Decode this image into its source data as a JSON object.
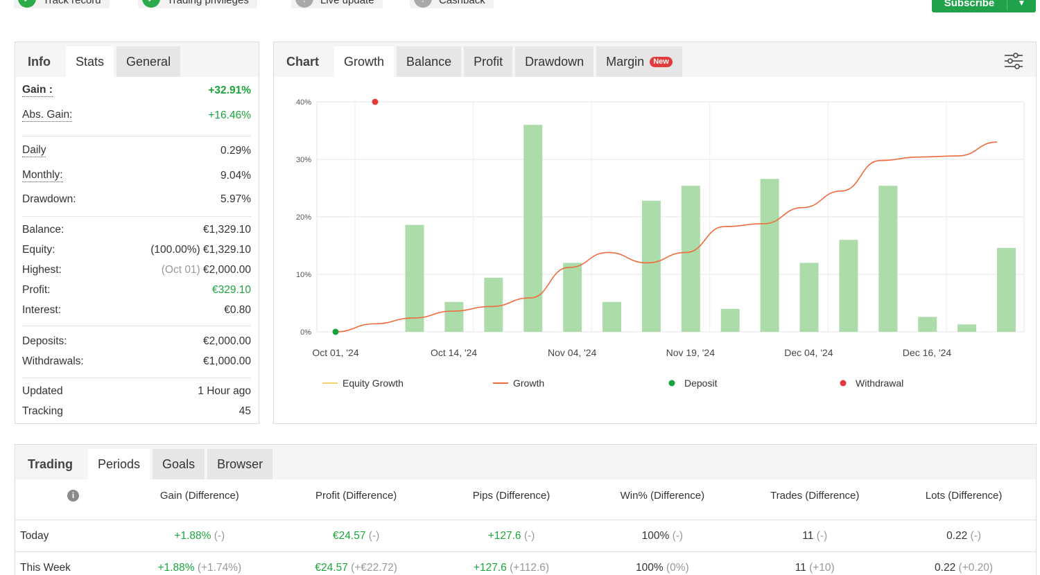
{
  "status_bar": {
    "items": [
      {
        "label": "Track record",
        "state": "verified"
      },
      {
        "label": "Trading privileges",
        "state": "verified"
      },
      {
        "label": "Live update",
        "state": "unavailable"
      },
      {
        "label": "Cashback",
        "state": "unavailable"
      }
    ],
    "subscribe_label": "Subscribe"
  },
  "info": {
    "tabs": [
      "Info",
      "Stats",
      "General"
    ],
    "active_tab": "Stats",
    "rows": {
      "gain": {
        "label": "Gain :",
        "value": "+32.91%"
      },
      "abs_gain": {
        "label": "Abs. Gain:",
        "value": "+16.46%"
      },
      "daily": {
        "label": "Daily",
        "value": "0.29%"
      },
      "monthly": {
        "label": "Monthly:",
        "value": "9.04%"
      },
      "drawdown": {
        "label": "Drawdown:",
        "value": "5.97%"
      },
      "balance": {
        "label": "Balance:",
        "value": "€1,329.10"
      },
      "equity": {
        "label": "Equity:",
        "note": "(100.00%)",
        "value": "€1,329.10"
      },
      "highest": {
        "label": "Highest:",
        "note": "(Oct 01)",
        "value": "€2,000.00"
      },
      "profit": {
        "label": "Profit:",
        "value": "€329.10"
      },
      "interest": {
        "label": "Interest:",
        "value": "€0.80"
      },
      "deposits": {
        "label": "Deposits:",
        "value": "€2,000.00"
      },
      "withdrawals": {
        "label": "Withdrawals:",
        "value": "€1,000.00"
      },
      "updated": {
        "label": "Updated",
        "value": "1 Hour ago"
      },
      "tracking": {
        "label": "Tracking",
        "value": "45"
      }
    }
  },
  "chart": {
    "tabs": [
      "Chart",
      "Growth",
      "Balance",
      "Profit",
      "Drawdown",
      "Margin"
    ],
    "active_tab": "Growth",
    "new_badge": "New",
    "settings_icon": "sliders-icon"
  },
  "chart_data": {
    "type": "bar",
    "y_unit": "%",
    "ylim": [
      0,
      40
    ],
    "y_ticks": [
      "0%",
      "10%",
      "20%",
      "30%",
      "40%"
    ],
    "x_ticks": [
      "Oct 01, '24",
      "Oct 14, '24",
      "Nov 04, '24",
      "Nov 19, '24",
      "Dec 04, '24",
      "Dec 16, '24"
    ],
    "grid": true,
    "legend_position": "bottom",
    "legend": [
      "Equity Growth",
      "Growth",
      "Deposit",
      "Withdrawal"
    ],
    "colors": {
      "bars": "#acdcaa",
      "growth": "#f06b3c",
      "equity": "#f3d36b",
      "deposit": "#17a23c",
      "withdrawal": "#e3393b"
    },
    "bars": [
      18.6,
      5.2,
      9.4,
      36.0,
      12.0,
      5.2,
      22.8,
      25.4,
      4.0,
      26.6,
      12.0,
      16.0,
      25.4,
      2.6,
      1.3,
      14.6
    ],
    "growth_line": [
      0,
      1.4,
      2.4,
      3.6,
      4.4,
      5.9,
      11.2,
      13.8,
      12.0,
      13.8,
      18.3,
      18.8,
      21.6,
      24.5,
      29.8,
      30.4,
      30.6,
      33.0
    ],
    "deposit_point": {
      "x": "Oct 01, '24",
      "y": 0
    },
    "withdrawal_point": {
      "y": 40
    }
  },
  "trading": {
    "tabs": [
      "Trading",
      "Periods",
      "Goals",
      "Browser"
    ],
    "active_tab": "Periods",
    "columns": [
      "Gain (Difference)",
      "Profit (Difference)",
      "Pips (Difference)",
      "Win% (Difference)",
      "Trades (Difference)",
      "Lots (Difference)"
    ],
    "rows": [
      {
        "period": "Today",
        "cells": [
          [
            "+1.88%",
            "(-)"
          ],
          [
            "€24.57",
            "(-)"
          ],
          [
            "+127.6",
            "(-)"
          ],
          [
            "100%",
            "(-)"
          ],
          [
            "11",
            "(-)"
          ],
          [
            "0.22",
            "(-)"
          ]
        ]
      },
      {
        "period": "This Week",
        "cells": [
          [
            "+1.88%",
            "(+1.74%)"
          ],
          [
            "€24.57",
            "(+€22.72)"
          ],
          [
            "+127.6",
            "(+112.6)"
          ],
          [
            "100%",
            "(0%)"
          ],
          [
            "11",
            "(+10)"
          ],
          [
            "0.22",
            "(+0.20)"
          ]
        ]
      }
    ]
  }
}
